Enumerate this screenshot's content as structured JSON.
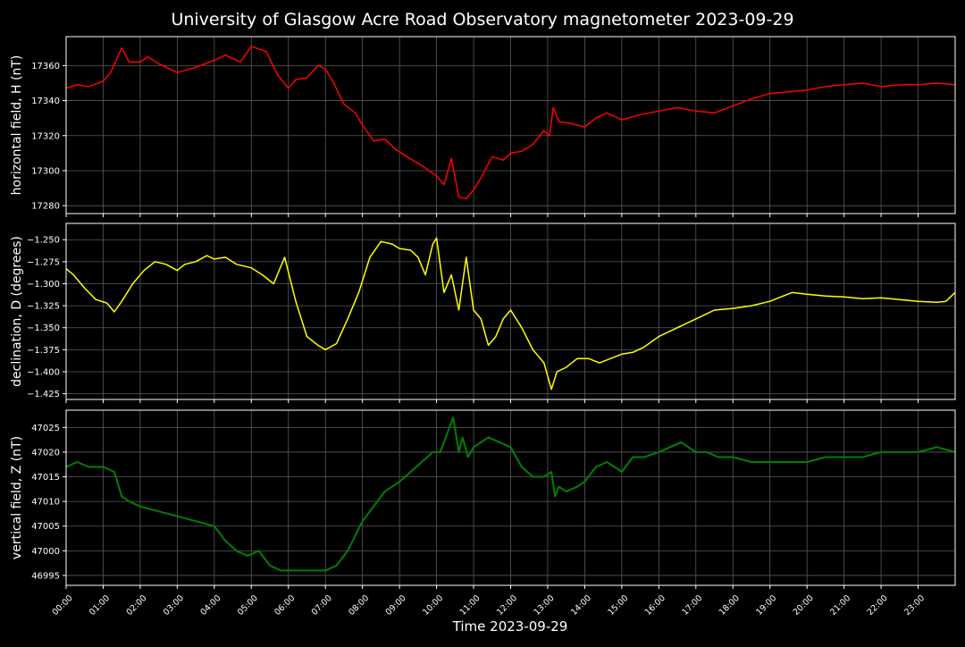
{
  "chart_data": {
    "type": "line",
    "title": "University of Glasgow Acre Road Observatory magnetometer 2023-09-29",
    "xlabel": "Time 2023-09-29",
    "x_ticks": [
      "00:00",
      "01:00",
      "02:00",
      "03:00",
      "04:00",
      "05:00",
      "06:00",
      "07:00",
      "08:00",
      "09:00",
      "10:00",
      "11:00",
      "12:00",
      "13:00",
      "14:00",
      "15:00",
      "16:00",
      "17:00",
      "18:00",
      "19:00",
      "20:00",
      "21:00",
      "22:00",
      "23:00"
    ],
    "x_range_hours": [
      0,
      24
    ],
    "grid": true,
    "panels": [
      {
        "name": "horizontal",
        "ylabel": "horizontal field, H (nT)",
        "color": "#ff0000",
        "ylim": [
          17275.5,
          17376.5
        ],
        "yticks": [
          17280,
          17300,
          17320,
          17340,
          17360
        ],
        "ytick_labels": [
          "17280",
          "17300",
          "17320",
          "17340",
          "17360"
        ],
        "x_hours": [
          0,
          0.3,
          0.6,
          1,
          1.2,
          1.5,
          1.7,
          2,
          2.2,
          2.5,
          3,
          3.5,
          4,
          4.3,
          4.7,
          5,
          5.4,
          5.7,
          6,
          6.2,
          6.5,
          6.8,
          7,
          7.2,
          7.5,
          7.8,
          8,
          8.3,
          8.6,
          8.9,
          9.2,
          9.6,
          10,
          10.2,
          10.4,
          10.6,
          10.8,
          11,
          11.2,
          11.5,
          11.8,
          12,
          12.3,
          12.6,
          12.9,
          13.05,
          13.15,
          13.3,
          13.6,
          14,
          14.3,
          14.6,
          15,
          15.5,
          16,
          16.5,
          17,
          17.5,
          18,
          18.5,
          19,
          19.5,
          20,
          20.5,
          21,
          21.5,
          22,
          22.5,
          23,
          23.5,
          24
        ],
        "y": [
          17347,
          17349,
          17348,
          17351,
          17356,
          17370,
          17362,
          17362,
          17365,
          17361,
          17356,
          17359,
          17363,
          17366,
          17362,
          17371,
          17368,
          17355,
          17347,
          17352,
          17353,
          17360,
          17358,
          17351,
          17338,
          17333,
          17326,
          17317,
          17318,
          17312,
          17308,
          17303,
          17297,
          17292,
          17307,
          17285,
          17284,
          17289,
          17296,
          17308,
          17306,
          17310,
          17311,
          17315,
          17323,
          17320,
          17336,
          17328,
          17327,
          17325,
          17330,
          17333,
          17329,
          17332,
          17334,
          17336,
          17334,
          17333,
          17337,
          17341,
          17344,
          17345,
          17346,
          17348,
          17349,
          17350,
          17348,
          17349,
          17349,
          17350,
          17349
        ]
      },
      {
        "name": "declination",
        "ylabel": "declination, D (degrees)",
        "color": "#ffff00",
        "ylim": [
          -1.4315,
          -1.2315
        ],
        "yticks": [
          -1.425,
          -1.4,
          -1.375,
          -1.35,
          -1.325,
          -1.3,
          -1.275,
          -1.25
        ],
        "ytick_labels": [
          "−1.425",
          "−1.400",
          "−1.375",
          "−1.350",
          "−1.325",
          "−1.300",
          "−1.275",
          "−1.250"
        ],
        "x_hours": [
          0,
          0.2,
          0.5,
          0.8,
          1.1,
          1.3,
          1.5,
          1.8,
          2.1,
          2.4,
          2.7,
          3,
          3.2,
          3.5,
          3.8,
          4,
          4.3,
          4.6,
          5,
          5.3,
          5.6,
          5.9,
          6.2,
          6.5,
          6.8,
          7,
          7.3,
          7.6,
          7.9,
          8.2,
          8.5,
          8.8,
          9,
          9.3,
          9.5,
          9.7,
          9.9,
          10,
          10.2,
          10.4,
          10.6,
          10.8,
          11,
          11.2,
          11.4,
          11.6,
          11.8,
          12,
          12.3,
          12.6,
          12.9,
          13.1,
          13.25,
          13.5,
          13.8,
          14.1,
          14.4,
          14.7,
          15,
          15.3,
          15.6,
          16,
          16.5,
          17,
          17.5,
          18,
          18.5,
          19,
          19.3,
          19.6,
          20,
          20.5,
          21,
          21.5,
          22,
          22.5,
          23,
          23.5,
          23.75,
          24
        ],
        "y": [
          -1.283,
          -1.29,
          -1.305,
          -1.318,
          -1.322,
          -1.332,
          -1.32,
          -1.3,
          -1.285,
          -1.275,
          -1.278,
          -1.285,
          -1.278,
          -1.275,
          -1.268,
          -1.272,
          -1.27,
          -1.278,
          -1.282,
          -1.29,
          -1.3,
          -1.27,
          -1.32,
          -1.36,
          -1.37,
          -1.375,
          -1.368,
          -1.34,
          -1.31,
          -1.27,
          -1.252,
          -1.255,
          -1.26,
          -1.262,
          -1.27,
          -1.29,
          -1.255,
          -1.248,
          -1.31,
          -1.29,
          -1.33,
          -1.27,
          -1.33,
          -1.34,
          -1.37,
          -1.36,
          -1.34,
          -1.33,
          -1.35,
          -1.375,
          -1.39,
          -1.42,
          -1.4,
          -1.395,
          -1.385,
          -1.385,
          -1.39,
          -1.385,
          -1.38,
          -1.378,
          -1.372,
          -1.36,
          -1.35,
          -1.34,
          -1.33,
          -1.328,
          -1.325,
          -1.32,
          -1.315,
          -1.31,
          -1.312,
          -1.314,
          -1.315,
          -1.317,
          -1.316,
          -1.318,
          -1.32,
          -1.321,
          -1.32,
          -1.31
        ]
      },
      {
        "name": "vertical",
        "ylabel": "vertical field, Z (nT)",
        "color": "#008000",
        "ylim": [
          46993,
          47028.5
        ],
        "yticks": [
          46995,
          47000,
          47005,
          47010,
          47015,
          47020,
          47025
        ],
        "ytick_labels": [
          "46995",
          "47000",
          "47005",
          "47010",
          "47015",
          "47020",
          "47025"
        ],
        "x_hours": [
          0,
          0.3,
          0.6,
          1,
          1.3,
          1.5,
          1.7,
          2,
          2.5,
          3,
          3.5,
          4,
          4.3,
          4.6,
          4.9,
          5.2,
          5.5,
          5.8,
          6.2,
          6.6,
          7,
          7.3,
          7.6,
          7.8,
          8,
          8.3,
          8.6,
          9,
          9.3,
          9.6,
          9.9,
          10.1,
          10.3,
          10.45,
          10.6,
          10.7,
          10.85,
          11,
          11.2,
          11.4,
          11.7,
          12,
          12.3,
          12.6,
          12.9,
          13.1,
          13.2,
          13.3,
          13.5,
          13.8,
          14,
          14.3,
          14.6,
          15,
          15.3,
          15.6,
          16,
          16.3,
          16.6,
          17,
          17.3,
          17.6,
          18,
          18.5,
          19,
          19.5,
          20,
          20.5,
          21,
          21.5,
          22,
          22.5,
          23,
          23.5,
          24
        ],
        "y": [
          47017,
          47018,
          47017,
          47017,
          47016,
          47011,
          47010,
          47009,
          47008,
          47007,
          47006,
          47005,
          47002,
          47000,
          46999,
          47000,
          46997,
          46996,
          46996,
          46996,
          46996,
          46997,
          47000,
          47003,
          47006,
          47009,
          47012,
          47014,
          47016,
          47018,
          47020,
          47020,
          47024,
          47027,
          47020,
          47023,
          47019,
          47021,
          47022,
          47023,
          47022,
          47021,
          47017,
          47015,
          47015,
          47016,
          47011,
          47013,
          47012,
          47013,
          47014,
          47017,
          47018,
          47016,
          47019,
          47019,
          47020,
          47021,
          47022,
          47020,
          47020,
          47019,
          47019,
          47018,
          47018,
          47018,
          47018,
          47019,
          47019,
          47019,
          47020,
          47020,
          47020,
          47021,
          47020
        ]
      }
    ]
  }
}
